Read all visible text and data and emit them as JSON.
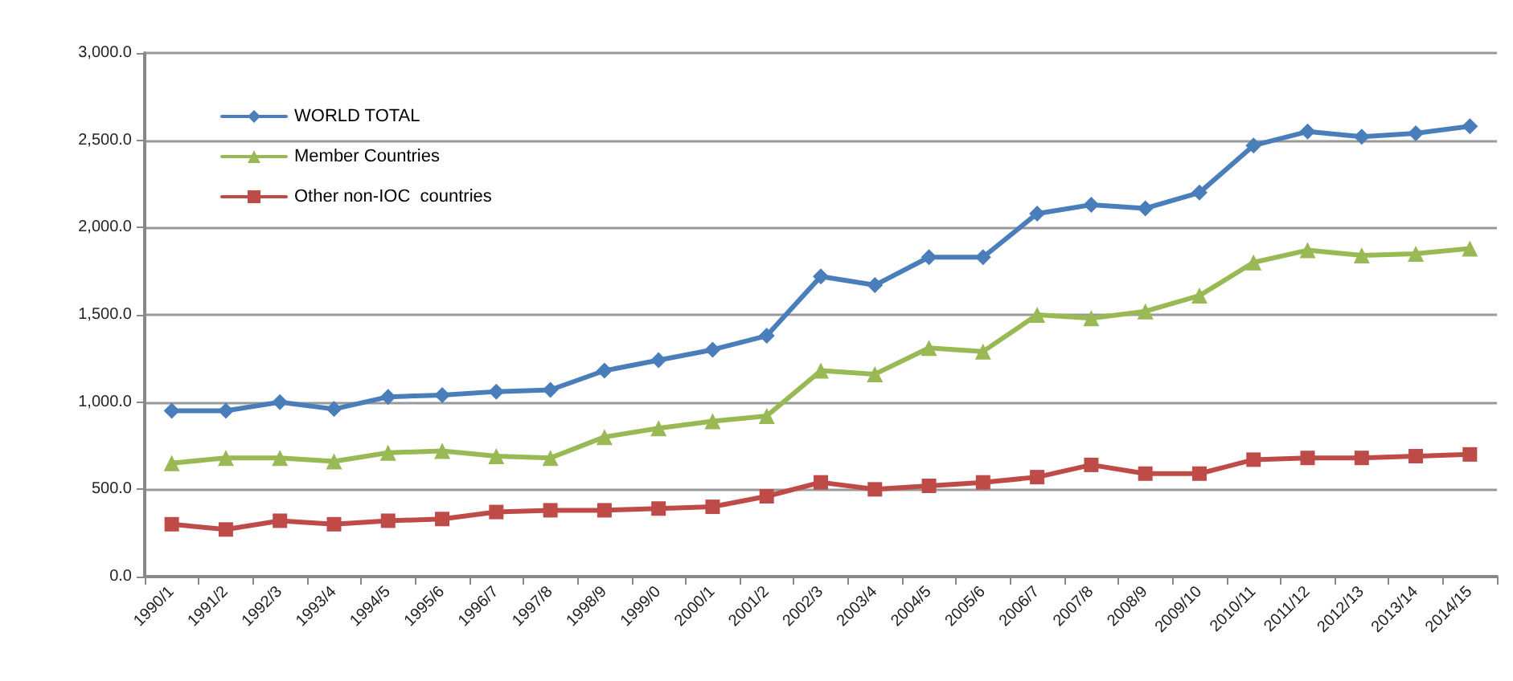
{
  "chart_data": {
    "type": "line",
    "categories": [
      "1990/1",
      "1991/2",
      "1992/3",
      "1993/4",
      "1994/5",
      "1995/6",
      "1996/7",
      "1997/8",
      "1998/9",
      "1999/0",
      "2000/1",
      "2001/2",
      "2002/3",
      "2003/4",
      "2004/5",
      "2005/6",
      "2006/7",
      "2007/8",
      "2008/9",
      "2009/10",
      "2010/11",
      "2011/12",
      "2012/13",
      "2013/14",
      "2014/15"
    ],
    "series": [
      {
        "name": "WORLD TOTAL",
        "color": "#4a7ebb",
        "marker": "diamond",
        "values": [
          950,
          950,
          1000,
          960,
          1030,
          1040,
          1060,
          1070,
          1180,
          1240,
          1300,
          1380,
          1720,
          1670,
          1830,
          1830,
          2080,
          2130,
          2110,
          2200,
          2470,
          2550,
          2520,
          2540,
          2580
        ]
      },
      {
        "name": "Member Countries",
        "color": "#98b954",
        "marker": "triangle",
        "values": [
          650,
          680,
          680,
          660,
          710,
          720,
          690,
          680,
          800,
          850,
          890,
          920,
          1180,
          1160,
          1310,
          1290,
          1500,
          1480,
          1520,
          1610,
          1800,
          1870,
          1840,
          1850,
          1880
        ]
      },
      {
        "name": "Other non-IOC  countries",
        "color": "#be4b48",
        "marker": "square",
        "values": [
          300,
          270,
          320,
          300,
          320,
          330,
          370,
          380,
          380,
          390,
          400,
          460,
          540,
          500,
          520,
          540,
          570,
          640,
          590,
          590,
          670,
          680,
          680,
          690,
          700
        ]
      }
    ],
    "ylim": [
      0,
      3000
    ],
    "yticks": [
      {
        "value": 0,
        "label": "0.0"
      },
      {
        "value": 500,
        "label": "500.0"
      },
      {
        "value": 1000,
        "label": "1,000.0"
      },
      {
        "value": 1500,
        "label": "1,500.0"
      },
      {
        "value": 2000,
        "label": "2,000.0"
      },
      {
        "value": 2500,
        "label": "2,500.0"
      },
      {
        "value": 3000,
        "label": "3,000.0"
      }
    ],
    "grid": "y",
    "legend": "top left",
    "line_style": "solid"
  }
}
